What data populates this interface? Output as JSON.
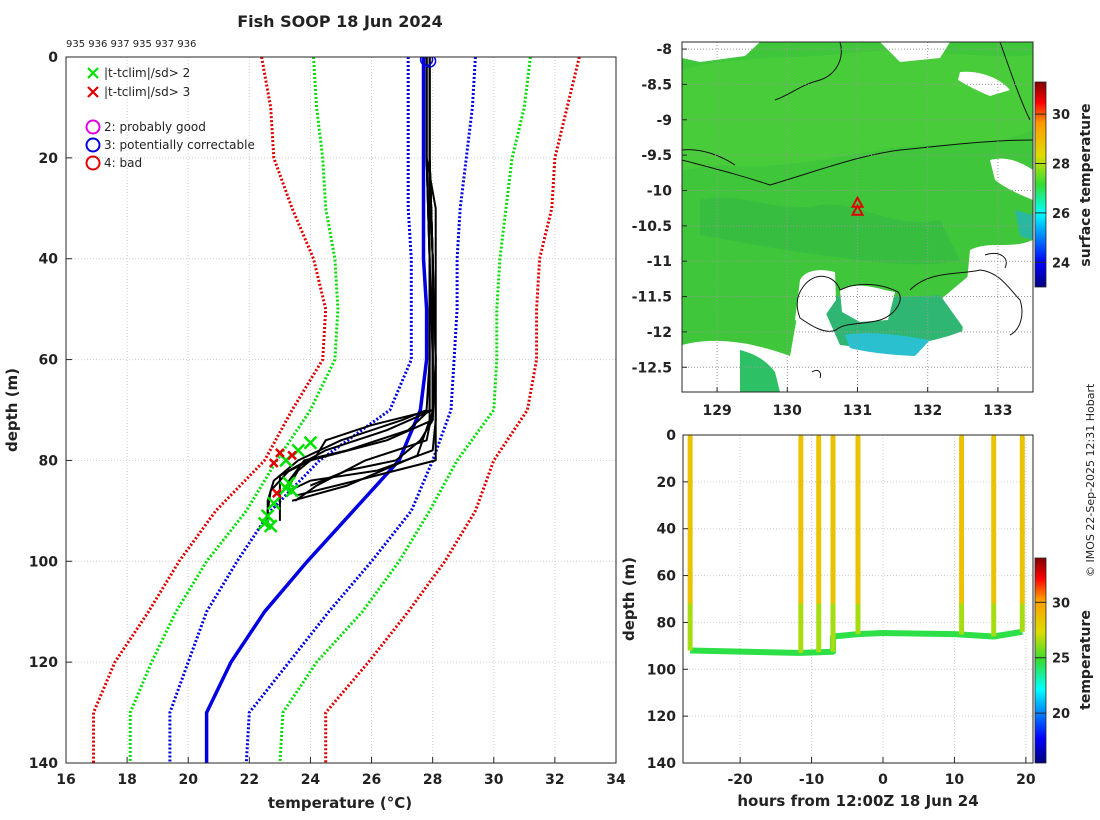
{
  "title": "Fish SOOP 18 Jun 2024",
  "id_list": "935 936 937 935 937 936",
  "credit": "© IMOS 22-Sep-2025 12:31 Hobart",
  "legend": [
    {
      "label": "|t-tclim|/sd> 2",
      "symbol": "x",
      "color": "#00e000"
    },
    {
      "label": "|t-tclim|/sd> 3",
      "symbol": "x",
      "color": "#e00000"
    },
    {
      "label": "2: probably good",
      "symbol": "o",
      "color": "#e000e0"
    },
    {
      "label": "3: potentially correctable",
      "symbol": "o",
      "color": "#0000e0"
    },
    {
      "label": "4: bad",
      "symbol": "o",
      "color": "#e00000"
    }
  ],
  "chart_data": [
    {
      "type": "line",
      "name": "profile",
      "xlabel": "temperature (°C)",
      "ylabel": "depth (m)",
      "xlim": [
        16,
        34
      ],
      "ylim": [
        140,
        0
      ],
      "xticks": [
        16,
        18,
        20,
        22,
        24,
        26,
        28,
        30,
        32,
        34
      ],
      "yticks": [
        0,
        20,
        40,
        60,
        80,
        100,
        120,
        140
      ],
      "colors": {
        "clim_mean": "#0000e0",
        "sd2": "#00dd00",
        "sd3": "#dd0000",
        "profile": "#000000"
      },
      "climatology": {
        "depth": [
          0,
          10,
          20,
          30,
          40,
          50,
          60,
          70,
          80,
          90,
          100,
          110,
          120,
          130,
          140
        ],
        "mean": [
          27.7,
          27.7,
          27.7,
          27.7,
          27.7,
          27.8,
          27.8,
          27.6,
          26.9,
          25.4,
          23.9,
          22.5,
          21.4,
          20.6,
          20.6
        ],
        "minus1": [
          27.2,
          27.2,
          27.2,
          27.2,
          27.3,
          27.3,
          27.3,
          26.6,
          24.3,
          22.7,
          21.6,
          20.6,
          20.0,
          19.4,
          19.4
        ],
        "plus1": [
          29.4,
          29.3,
          29.1,
          28.9,
          28.8,
          28.8,
          28.7,
          28.6,
          28.0,
          27.3,
          26.0,
          24.6,
          23.3,
          22.0,
          21.9
        ],
        "minus2": [
          24.1,
          24.2,
          24.4,
          24.5,
          24.8,
          24.9,
          24.8,
          24.0,
          22.9,
          21.9,
          20.6,
          19.6,
          18.8,
          18.1,
          18.1
        ],
        "plus2": [
          31.2,
          31.0,
          30.6,
          30.4,
          30.2,
          30.1,
          30.1,
          30.0,
          28.8,
          27.9,
          26.9,
          25.7,
          24.2,
          23.1,
          23.0
        ],
        "minus3": [
          22.4,
          22.7,
          22.8,
          23.4,
          24.1,
          24.5,
          24.4,
          23.4,
          22.5,
          20.9,
          19.7,
          18.7,
          17.6,
          16.9,
          16.9
        ],
        "plus3": [
          32.8,
          32.4,
          32.0,
          31.9,
          31.5,
          31.4,
          31.4,
          31.1,
          30.0,
          29.4,
          28.4,
          27.2,
          25.9,
          24.5,
          24.5
        ]
      },
      "profiles": [
        {
          "depth": [
            0,
            20,
            40,
            60,
            70,
            72,
            76,
            80,
            84,
            88,
            92
          ],
          "temp": [
            27.9,
            27.9,
            27.9,
            27.9,
            27.8,
            27.0,
            25.0,
            23.6,
            22.8,
            22.6,
            22.6
          ]
        },
        {
          "depth": [
            0,
            20,
            40,
            60,
            70,
            74,
            78,
            82,
            86,
            90,
            93
          ],
          "temp": [
            27.9,
            27.9,
            28.0,
            28.0,
            28.0,
            26.5,
            24.5,
            23.3,
            22.7,
            22.6,
            22.6
          ]
        },
        {
          "depth": [
            0,
            20,
            30,
            40,
            60,
            72,
            76,
            80,
            83,
            87,
            92
          ],
          "temp": [
            27.8,
            27.8,
            28.1,
            28.1,
            28.1,
            28.0,
            26.5,
            24.0,
            23.0,
            23.0,
            23.0
          ]
        },
        {
          "depth": [
            0,
            20,
            40,
            60,
            70,
            76,
            80,
            85,
            88
          ],
          "temp": [
            27.9,
            27.9,
            28.0,
            28.0,
            28.0,
            27.8,
            25.8,
            24.2,
            23.5
          ]
        },
        {
          "depth": [
            0,
            20,
            40,
            60,
            72,
            78,
            82,
            84,
            86
          ],
          "temp": [
            27.9,
            27.9,
            28.0,
            28.1,
            28.1,
            28.0,
            26.2,
            24.0,
            23.3
          ]
        },
        {
          "depth": [
            0,
            20,
            40,
            60,
            70,
            74,
            78,
            80,
            84,
            86
          ],
          "temp": [
            27.8,
            27.8,
            27.9,
            27.9,
            27.9,
            27.2,
            25.2,
            23.8,
            23.3,
            23.3
          ]
        },
        {
          "depth": [
            0,
            20,
            40,
            60,
            72,
            76,
            80,
            82,
            85
          ],
          "temp": [
            27.9,
            27.9,
            28.0,
            28.0,
            28.0,
            27.6,
            26.8,
            25.2,
            24.0
          ]
        },
        {
          "depth": [
            0,
            20,
            40,
            60,
            70,
            73,
            76,
            79,
            82,
            85
          ],
          "temp": [
            27.8,
            27.8,
            27.9,
            28.0,
            28.0,
            26.0,
            24.5,
            24.2,
            23.6,
            23.3
          ]
        },
        {
          "depth": [
            0,
            20,
            40,
            60,
            72,
            80,
            84,
            87
          ],
          "temp": [
            27.9,
            27.9,
            28.0,
            28.1,
            28.1,
            28.1,
            25.5,
            23.5
          ]
        },
        {
          "depth": [
            0,
            20,
            40,
            60,
            72,
            79,
            85,
            88
          ],
          "temp": [
            27.8,
            27.8,
            27.9,
            27.9,
            27.9,
            27.5,
            25.2,
            23.4
          ]
        }
      ],
      "flags_sd2": [
        {
          "t": 24.0,
          "d": 76.5
        },
        {
          "t": 23.6,
          "d": 78.0
        },
        {
          "t": 23.2,
          "d": 80.0
        },
        {
          "t": 23.3,
          "d": 84.5
        },
        {
          "t": 23.2,
          "d": 85.5
        },
        {
          "t": 23.4,
          "d": 86.0
        },
        {
          "t": 22.8,
          "d": 88.5
        },
        {
          "t": 22.6,
          "d": 91.0
        },
        {
          "t": 22.5,
          "d": 92.5
        },
        {
          "t": 22.7,
          "d": 93.0
        }
      ],
      "flags_sd3": [
        {
          "t": 23.0,
          "d": 78.5
        },
        {
          "t": 22.8,
          "d": 80.5
        },
        {
          "t": 23.4,
          "d": 79.0
        },
        {
          "t": 22.9,
          "d": 86.5
        }
      ],
      "surface_circles": [
        {
          "t": 27.8,
          "d": 0.5
        },
        {
          "t": 27.9,
          "d": 0.8
        }
      ]
    },
    {
      "type": "heatmap",
      "name": "sst_map",
      "colorbar_label": "surface temperature",
      "xlim": [
        128.5,
        133.5
      ],
      "ylim": [
        -12.85,
        -7.9
      ],
      "xticks": [
        129,
        130,
        131,
        132,
        133
      ],
      "yticks": [
        -8,
        -8.5,
        -9,
        -9.5,
        -10,
        -10.5,
        -11,
        -11.5,
        -12,
        -12.5
      ],
      "colorbar_range": [
        23,
        31.3
      ],
      "colorbar_ticks": [
        24,
        26,
        28,
        30
      ],
      "marker": {
        "lon": 131.0,
        "lat": -10.3,
        "symbol": "triangle",
        "color": "#e00000"
      }
    },
    {
      "type": "scatter",
      "name": "depth_time",
      "xlabel": "hours from 12:00Z 18 Jun 24",
      "ylabel": "depth (m)",
      "colorbar_label": "temperature",
      "xlim": [
        -28,
        21
      ],
      "ylim": [
        140,
        0
      ],
      "xticks": [
        -20,
        -10,
        0,
        10,
        20
      ],
      "yticks": [
        0,
        20,
        40,
        60,
        80,
        100,
        120,
        140
      ],
      "colorbar_range": [
        15.5,
        34
      ],
      "colorbar_ticks": [
        20,
        25,
        30
      ],
      "casts": [
        -27.0,
        -11.5,
        -9.0,
        -7.0,
        -3.5,
        11.0,
        15.5,
        19.5
      ],
      "bottom": [
        {
          "h": -27,
          "d": 92
        },
        {
          "h": -12,
          "d": 93
        },
        {
          "h": -11.5,
          "d": 93
        },
        {
          "h": -7,
          "d": 92.5
        },
        {
          "h": -7,
          "d": 86
        },
        {
          "h": -3.5,
          "d": 85
        },
        {
          "h": 0,
          "d": 84.5
        },
        {
          "h": 10,
          "d": 85
        },
        {
          "h": 15.5,
          "d": 86
        },
        {
          "h": 19.5,
          "d": 84
        }
      ],
      "surface_temp": 28.5,
      "thermocline_temp": 26.5,
      "bottom_temp": 24.5
    }
  ]
}
